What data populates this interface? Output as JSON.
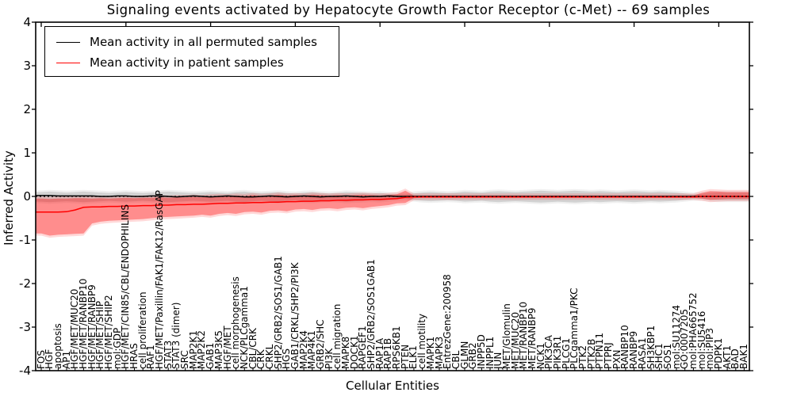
{
  "title": "Signaling events activated by Hepatocyte Growth Factor Receptor (c-Met) -- 69 samples",
  "legend": {
    "entries": [
      {
        "label": "Mean activity in all permuted samples",
        "color": "#000000"
      },
      {
        "label": "Mean activity in patient samples",
        "color": "#ff0000"
      }
    ]
  },
  "chart_data": {
    "type": "line",
    "title": "Signaling events activated by Hepatocyte Growth Factor Receptor (c-Met) -- 69 samples",
    "xlabel": "Cellular Entities",
    "ylabel": "Inferred Activity",
    "ylim": [
      -4,
      4
    ],
    "yticks": [
      -4,
      -3,
      -2,
      -1,
      0,
      1,
      2,
      3,
      4
    ],
    "grid": false,
    "legend_position": "upper left",
    "zero_line": {
      "style": "dashed",
      "color": "#000000",
      "y": 0
    },
    "categories": [
      "FOS",
      "HGF",
      "apoptosis",
      "AP1",
      "HGF/MET/MUC20",
      "HGF/MET/RANBP10",
      "HGF/MET/RANBP9",
      "HGF/MET/SHIP",
      "HGF/MET/SHIP2",
      "mol:GDP",
      "HGF/MET/CIN85/CBL/ENDOPHILINS",
      "HRAS",
      "cell proliferation",
      "RAF1",
      "HGF/MET/Paxillin/FAK1/FAK12/RasGAP",
      "STAT3",
      "STAT3 (dimer)",
      "SRC",
      "MAP2K1",
      "MAP2K2",
      "GAB1",
      "MAP3K5",
      "HGF/MET",
      "cell morphogenesis",
      "NCK/PLCgamma1",
      "CBL/CRK",
      "CRK",
      "CRKL",
      "SHP2/GRB2/SOS1/GAB1",
      "HGS",
      "GAB1/CRKL/SHP2/PI3K",
      "MAP2K4",
      "MAP4K1",
      "GRB2/SHC",
      "PI3K",
      "cell migration",
      "MAPK8",
      "DOCK1",
      "RAPGEF1",
      "SHP2/GRB2/SOS1GAB1",
      "RAP1A",
      "RAP1B",
      "RPS6KB1",
      "PTEN",
      "ELK1",
      "cell motility",
      "MAPK1",
      "MAPK3",
      "EntrezGene:200958",
      "CBL",
      "GLMN",
      "GRB2",
      "INPP5D",
      "INPPL1",
      "JUN",
      "MET/Glomulin",
      "MET/MUC20",
      "MET/RANBP10",
      "MET/RANBP9",
      "NCK1",
      "PIK3CA",
      "PIK3R1",
      "PLCG1",
      "PLCgamma1/PKC",
      "PTK2",
      "PTK2B",
      "PTPN11",
      "PTPRJ",
      "PXN",
      "RANBP10",
      "RANBP9",
      "RASA1",
      "SH3KBP1",
      "SHC1",
      "SOS1",
      "mol:SU11274",
      "GO:0007205",
      "mol:PHA665752",
      "mol:SU5416",
      "mol:PIP3",
      "PDPK1",
      "AKT1",
      "BAD",
      "BAK1"
    ],
    "series": [
      {
        "name": "Mean activity in all permuted samples",
        "color": "#000000",
        "values": [
          0.02,
          0.02,
          0.01,
          0.01,
          0.01,
          0.01,
          0.01,
          0.0,
          0.0,
          0.01,
          0.01,
          0.0,
          0.0,
          0.01,
          0.01,
          0.0,
          -0.01,
          0.0,
          0.01,
          0.0,
          -0.01,
          0.0,
          0.01,
          0.0,
          -0.01,
          -0.01,
          0.0,
          0.01,
          0.0,
          -0.01,
          0.0,
          0.01,
          0.0,
          -0.01,
          0.0,
          0.0,
          0.01,
          0.0,
          -0.01,
          0.0,
          0.0,
          0.01,
          0.0,
          0.0,
          0.0,
          0.0,
          0.0,
          0.0,
          0.0,
          0.0,
          0.0,
          0.0,
          0.0,
          0.0,
          0.0,
          0.0,
          0.0,
          0.0,
          0.0,
          0.0,
          0.0,
          0.0,
          0.0,
          0.0,
          0.0,
          0.0,
          0.0,
          0.0,
          0.0,
          0.0,
          0.0,
          0.0,
          0.0,
          0.0,
          0.0,
          0.0,
          0.0,
          0.0,
          0.0,
          0.0,
          0.0,
          0.0,
          0.0,
          0.0
        ]
      },
      {
        "name": "Mean activity in patient samples",
        "color": "#ff0000",
        "values": [
          -0.36,
          -0.36,
          -0.36,
          -0.35,
          -0.31,
          -0.25,
          -0.24,
          -0.24,
          -0.23,
          -0.23,
          -0.22,
          -0.22,
          -0.21,
          -0.21,
          -0.2,
          -0.2,
          -0.19,
          -0.19,
          -0.18,
          -0.18,
          -0.17,
          -0.16,
          -0.16,
          -0.15,
          -0.15,
          -0.14,
          -0.14,
          -0.13,
          -0.13,
          -0.12,
          -0.12,
          -0.11,
          -0.11,
          -0.1,
          -0.1,
          -0.09,
          -0.09,
          -0.08,
          -0.08,
          -0.07,
          -0.07,
          -0.06,
          -0.05,
          -0.02,
          -0.01,
          -0.01,
          -0.01,
          -0.01,
          -0.01,
          -0.01,
          -0.01,
          -0.01,
          -0.01,
          -0.01,
          -0.01,
          -0.01,
          -0.01,
          -0.01,
          -0.01,
          -0.01,
          -0.01,
          -0.01,
          -0.01,
          -0.01,
          -0.01,
          -0.01,
          -0.01,
          -0.01,
          -0.01,
          -0.01,
          -0.01,
          -0.01,
          -0.01,
          -0.01,
          -0.01,
          -0.01,
          -0.01,
          -0.01,
          0.0,
          0.0,
          0.0,
          0.0,
          0.0,
          0.0
        ]
      }
    ],
    "bands": [
      {
        "name": "permuted-confidence-band",
        "color": "rgba(0,0,0,0.12)",
        "halo_color": "rgba(0,0,0,0.06)",
        "halo_pad": 0.04,
        "lo": [
          -0.12,
          -0.13,
          -0.12,
          -0.11,
          -0.12,
          -0.13,
          -0.12,
          -0.11,
          -0.1,
          -0.11,
          -0.12,
          -0.11,
          -0.1,
          -0.11,
          -0.12,
          -0.13,
          -0.12,
          -0.11,
          -0.1,
          -0.11,
          -0.12,
          -0.11,
          -0.1,
          -0.12,
          -0.13,
          -0.11,
          -0.1,
          -0.11,
          -0.12,
          -0.1,
          -0.09,
          -0.11,
          -0.12,
          -0.1,
          -0.09,
          -0.1,
          -0.12,
          -0.11,
          -0.1,
          -0.09,
          -0.1,
          -0.08,
          -0.06,
          -0.05,
          -0.08,
          -0.1,
          -0.11,
          -0.1,
          -0.09,
          -0.1,
          -0.12,
          -0.11,
          -0.1,
          -0.12,
          -0.13,
          -0.12,
          -0.11,
          -0.12,
          -0.13,
          -0.14,
          -0.13,
          -0.12,
          -0.13,
          -0.14,
          -0.13,
          -0.12,
          -0.13,
          -0.12,
          -0.11,
          -0.12,
          -0.13,
          -0.12,
          -0.11,
          -0.12,
          -0.11,
          -0.1,
          -0.08,
          -0.06,
          -0.06,
          -0.08,
          -0.09,
          -0.09,
          -0.09,
          -0.09
        ],
        "hi": [
          0.1,
          0.11,
          0.1,
          0.09,
          0.1,
          0.11,
          0.1,
          0.09,
          0.08,
          0.09,
          0.1,
          0.09,
          0.08,
          0.09,
          0.1,
          0.11,
          0.1,
          0.09,
          0.08,
          0.09,
          0.1,
          0.09,
          0.08,
          0.1,
          0.11,
          0.09,
          0.08,
          0.09,
          0.1,
          0.08,
          0.07,
          0.09,
          0.1,
          0.08,
          0.07,
          0.08,
          0.1,
          0.09,
          0.08,
          0.07,
          0.08,
          0.06,
          0.05,
          0.05,
          0.07,
          0.09,
          0.1,
          0.09,
          0.08,
          0.09,
          0.11,
          0.1,
          0.09,
          0.11,
          0.12,
          0.11,
          0.1,
          0.11,
          0.12,
          0.13,
          0.12,
          0.11,
          0.12,
          0.13,
          0.12,
          0.11,
          0.12,
          0.11,
          0.1,
          0.11,
          0.12,
          0.11,
          0.1,
          0.11,
          0.1,
          0.09,
          0.07,
          0.05,
          0.06,
          0.08,
          0.09,
          0.09,
          0.09,
          0.09
        ]
      },
      {
        "name": "patient-confidence-band",
        "color": "rgba(255,0,0,0.35)",
        "halo_color": "rgba(255,0,0,0.15)",
        "halo_pad": 0.05,
        "lo": [
          -0.85,
          -0.9,
          -0.88,
          -0.87,
          -0.86,
          -0.85,
          -0.62,
          -0.58,
          -0.56,
          -0.55,
          -0.54,
          -0.53,
          -0.52,
          -0.5,
          -0.48,
          -0.47,
          -0.46,
          -0.45,
          -0.44,
          -0.42,
          -0.44,
          -0.4,
          -0.38,
          -0.4,
          -0.36,
          -0.35,
          -0.37,
          -0.33,
          -0.32,
          -0.34,
          -0.3,
          -0.29,
          -0.31,
          -0.28,
          -0.27,
          -0.29,
          -0.26,
          -0.25,
          -0.27,
          -0.24,
          -0.22,
          -0.2,
          -0.16,
          -0.15,
          -0.04,
          -0.03,
          -0.03,
          -0.03,
          -0.03,
          -0.03,
          -0.03,
          -0.03,
          -0.03,
          -0.03,
          -0.03,
          -0.03,
          -0.03,
          -0.03,
          -0.03,
          -0.03,
          -0.03,
          -0.03,
          -0.03,
          -0.03,
          -0.03,
          -0.03,
          -0.03,
          -0.03,
          -0.03,
          -0.03,
          -0.03,
          -0.03,
          -0.03,
          -0.03,
          -0.03,
          -0.03,
          -0.03,
          -0.03,
          -0.05,
          -0.08,
          -0.07,
          -0.06,
          -0.06,
          -0.06
        ],
        "hi": [
          -0.05,
          -0.06,
          -0.05,
          -0.05,
          -0.04,
          -0.04,
          -0.05,
          -0.04,
          -0.05,
          -0.04,
          -0.03,
          -0.04,
          -0.03,
          -0.03,
          -0.02,
          -0.03,
          -0.02,
          -0.02,
          -0.01,
          -0.02,
          0.0,
          0.01,
          0.0,
          0.02,
          0.01,
          0.03,
          0.01,
          0.02,
          0.04,
          0.02,
          0.03,
          0.02,
          0.04,
          0.03,
          0.02,
          0.03,
          0.02,
          0.03,
          0.04,
          0.03,
          0.02,
          0.03,
          0.05,
          0.13,
          0.02,
          0.02,
          0.02,
          0.02,
          0.02,
          0.02,
          0.02,
          0.02,
          0.02,
          0.02,
          0.02,
          0.02,
          0.02,
          0.02,
          0.02,
          0.02,
          0.02,
          0.02,
          0.02,
          0.02,
          0.02,
          0.02,
          0.02,
          0.02,
          0.02,
          0.02,
          0.02,
          0.02,
          0.02,
          0.02,
          0.02,
          0.02,
          0.02,
          0.02,
          0.08,
          0.12,
          0.11,
          0.1,
          0.1,
          0.1
        ]
      }
    ]
  }
}
